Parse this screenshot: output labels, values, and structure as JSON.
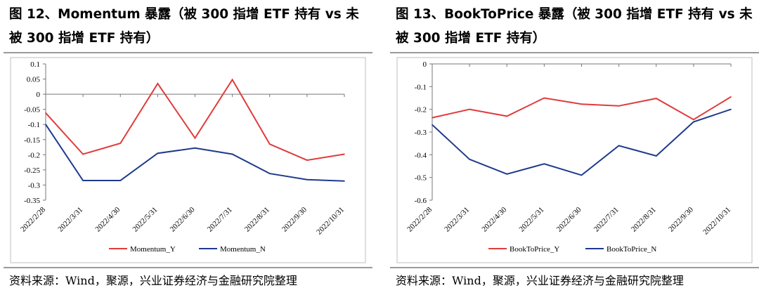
{
  "panels": [
    {
      "title": "图 12、Momentum 暴露（被 300 指增 ETF 持有 vs 未被 300 指增 ETF 持有）",
      "source": "资料来源：Wind，聚源，兴业证券经济与金融研究院整理"
    },
    {
      "title": "图 13、BookToPrice 暴露（被 300 指增 ETF 持有 vs 未被 300 指增 ETF 持有）",
      "source": "资料来源：Wind，聚源，兴业证券经济与金融研究院整理"
    }
  ],
  "colors": {
    "series_y": "#e03c3c",
    "series_n": "#1f3a8c",
    "axis": "#777777",
    "frame": "#bfbfbf"
  },
  "chart_data": [
    {
      "type": "line",
      "categories": [
        "2022/2/28",
        "2022/3/31",
        "2022/4/30",
        "2022/5/31",
        "2022/6/30",
        "2022/7/31",
        "2022/8/31",
        "2022/9/30",
        "2022/10/31"
      ],
      "ylim": [
        -0.35,
        0.1
      ],
      "yticks": [
        "0.1",
        "0.05",
        "0",
        "-0.05",
        "-0.1",
        "-0.15",
        "-0.2",
        "-0.25",
        "-0.3",
        "-0.35"
      ],
      "ytick_values": [
        0.1,
        0.05,
        0,
        -0.05,
        -0.1,
        -0.15,
        -0.2,
        -0.25,
        -0.3,
        -0.35
      ],
      "series": [
        {
          "name": "Momentum_Y",
          "values": [
            -0.062,
            -0.198,
            -0.162,
            0.035,
            -0.145,
            0.048,
            -0.165,
            -0.218,
            -0.198
          ]
        },
        {
          "name": "Momentum_N",
          "values": [
            -0.1,
            -0.285,
            -0.285,
            -0.195,
            -0.178,
            -0.198,
            -0.262,
            -0.282,
            -0.287
          ]
        }
      ],
      "legend": "bottom"
    },
    {
      "type": "line",
      "categories": [
        "2022/2/28",
        "2022/3/31",
        "2022/4/30",
        "2022/5/31",
        "2022/6/30",
        "2022/7/31",
        "2022/8/31",
        "2022/9/30",
        "2022/10/31"
      ],
      "ylim": [
        -0.6,
        0
      ],
      "yticks": [
        "0",
        "-0.1",
        "-0.2",
        "-0.3",
        "-0.4",
        "-0.5",
        "-0.6"
      ],
      "ytick_values": [
        0,
        -0.1,
        -0.2,
        -0.3,
        -0.4,
        -0.5,
        -0.6
      ],
      "series": [
        {
          "name": "BookToPrice_Y",
          "values": [
            -0.237,
            -0.2,
            -0.23,
            -0.15,
            -0.177,
            -0.185,
            -0.152,
            -0.245,
            -0.145
          ]
        },
        {
          "name": "BookToPrice_N",
          "values": [
            -0.268,
            -0.42,
            -0.485,
            -0.44,
            -0.49,
            -0.36,
            -0.405,
            -0.255,
            -0.2
          ]
        }
      ],
      "legend": "bottom"
    }
  ]
}
